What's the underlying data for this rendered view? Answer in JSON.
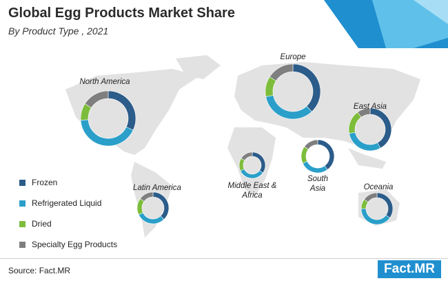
{
  "chart_data": {
    "type": "donut",
    "title": "Global Egg Products Market Share",
    "subtitle": "By Product Type , 2021",
    "source": "Source: Fact.MR",
    "logo": "Fact.MR",
    "categories": [
      "Frozen",
      "Refrigerated Liquid",
      "Dried",
      "Specialty Egg Products"
    ],
    "colors": [
      "#2b5c8a",
      "#2a9fc9",
      "#7dbd3c",
      "#7f7f7f"
    ],
    "regions": [
      {
        "name": "North America",
        "values": [
          32,
          42,
          10,
          16
        ]
      },
      {
        "name": "Europe",
        "values": [
          38,
          34,
          12,
          16
        ]
      },
      {
        "name": "East Asia",
        "values": [
          42,
          30,
          18,
          10
        ]
      },
      {
        "name": "South Asia",
        "values": [
          40,
          28,
          17,
          15
        ]
      },
      {
        "name": "Middle East & Africa",
        "values": [
          35,
          33,
          16,
          16
        ]
      },
      {
        "name": "Latin America",
        "values": [
          38,
          30,
          17,
          15
        ]
      },
      {
        "name": "Oceania",
        "values": [
          35,
          40,
          10,
          15
        ]
      }
    ]
  }
}
